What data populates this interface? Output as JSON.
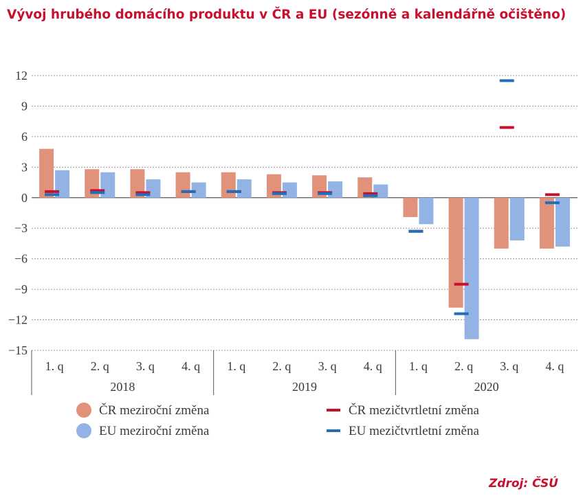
{
  "title": "Vývoj hrubého domácího produktu v ČR a EU (sezónně a kalendářně očištěno)",
  "source": "Zdroj: ČSÚ",
  "chart_data": {
    "type": "bar",
    "title": "Vývoj hrubého domácího produktu v ČR a EU (sezónně a kalendářně očištěno)",
    "xlabel": "",
    "ylabel": "",
    "ylim": [
      -15,
      12
    ],
    "yticks": [
      "12",
      "9",
      "6",
      "3",
      "0",
      "−3",
      "−6",
      "−9",
      "−12",
      "−15"
    ],
    "grid": true,
    "categories": [
      "1. q",
      "2. q",
      "3. q",
      "4. q",
      "1. q",
      "2. q",
      "3. q",
      "4. q",
      "1. q",
      "2. q",
      "3. q",
      "4. q"
    ],
    "groups": [
      {
        "label": "2018",
        "span": 4
      },
      {
        "label": "2019",
        "span": 4
      },
      {
        "label": "2020",
        "span": 4
      }
    ],
    "series": [
      {
        "name": "ČR meziroční změna",
        "kind": "bar",
        "color": "#e0937a",
        "values": [
          4.8,
          2.8,
          2.8,
          2.5,
          2.5,
          2.3,
          2.2,
          2.0,
          -1.9,
          -10.8,
          -5.0,
          -5.0
        ]
      },
      {
        "name": "EU meziroční změna",
        "kind": "bar",
        "color": "#93b3e4",
        "values": [
          2.7,
          2.5,
          1.8,
          1.5,
          1.8,
          1.5,
          1.6,
          1.3,
          -2.6,
          -13.9,
          -4.2,
          -4.8
        ]
      },
      {
        "name": "ČR mezičtvrtletní změna",
        "kind": "marker",
        "color": "#c8102e",
        "values": [
          0.6,
          0.7,
          0.5,
          0.6,
          0.6,
          0.5,
          0.5,
          0.4,
          -3.3,
          -8.5,
          6.9,
          0.3
        ]
      },
      {
        "name": "EU mezičtvrtletní změna",
        "kind": "marker",
        "color": "#1f70b8",
        "values": [
          0.3,
          0.5,
          0.3,
          0.6,
          0.6,
          0.4,
          0.4,
          0.2,
          -3.3,
          -11.4,
          11.5,
          -0.5
        ]
      }
    ],
    "legend_position": "bottom"
  }
}
